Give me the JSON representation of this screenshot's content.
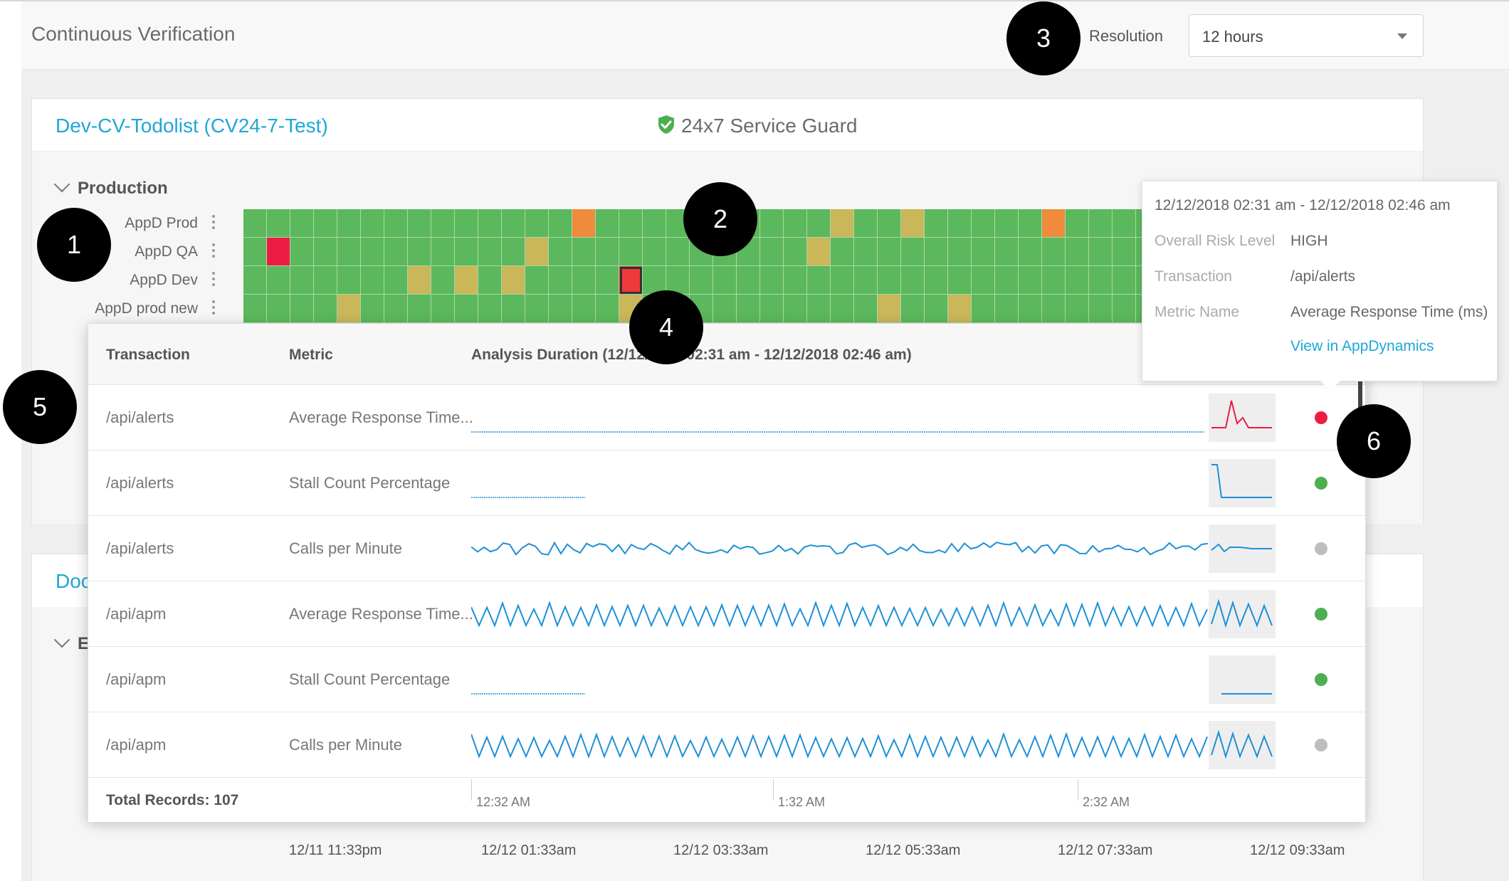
{
  "header": {
    "title": "Continuous Verification",
    "resolution_label": "Resolution",
    "resolution_value": "12 hours"
  },
  "service": {
    "title": "Dev-CV-Todolist (CV24-7-Test)",
    "guard_label": "24x7 Service Guard",
    "environment": "Production"
  },
  "heatmap": {
    "rows": [
      {
        "label": "AppD Prod",
        "cells": "GGGGGGGGGGGGGGOGGGGGGGGGGYGGYGGGGGOGGGGGGGGGGGGGGGG"
      },
      {
        "label": "AppD QA",
        "cells": "GRGGGGGGGGGGYGGGGGGGGGGGYGGGGGGGGGGGGGGGGGGGGGGGGGG"
      },
      {
        "label": "AppD Dev",
        "cells": "GGGGGGGYGYGYGGGGXGGGGGGGGGGGGGGGGGGGGGGGGGGGGGGGYGG"
      },
      {
        "label": "AppD prod new",
        "cells": "GGGGYGGGGGGGGGGGYGGGGGGGGGGYGGYGGGGGGGGGGGGGGGGGGGG"
      }
    ],
    "colors": {
      "G": "#5cb85c",
      "Y": "#c9b75a",
      "O": "#f08a3c",
      "R": "#ee1c45",
      "X": "#ee3a3a",
      "W": "#e8a84a"
    }
  },
  "second_card": {
    "title_partial": "Doc",
    "env_partial": "E"
  },
  "time_axis": [
    "12/11 11:33pm",
    "12/12 01:33am",
    "12/12 03:33am",
    "12/12 05:33am",
    "12/12 07:33am",
    "12/12 09:33am"
  ],
  "popup": {
    "col_transaction": "Transaction",
    "col_metric": "Metric",
    "col_duration": "Analysis Duration (12/12/2018 02:31 am - 12/12/2018 02:46 am)",
    "rows": [
      {
        "transaction": "/api/alerts",
        "metric": "Average Response Time...",
        "status": "red"
      },
      {
        "transaction": "/api/alerts",
        "metric": "Stall Count Percentage",
        "status": "green"
      },
      {
        "transaction": "/api/alerts",
        "metric": "Calls per Minute",
        "status": "gray"
      },
      {
        "transaction": "/api/apm",
        "metric": "Average Response Time...",
        "status": "green"
      },
      {
        "transaction": "/api/apm",
        "metric": "Stall Count Percentage",
        "status": "green"
      },
      {
        "transaction": "/api/apm",
        "metric": "Calls per Minute",
        "status": "gray"
      }
    ],
    "total_records": "Total Records: 107",
    "ticks": [
      "12:32 AM",
      "1:32 AM",
      "2:32 AM"
    ],
    "status_colors": {
      "red": "#ee1c45",
      "green": "#4caf50",
      "gray": "#bdbdbd"
    }
  },
  "tooltip": {
    "range": "12/12/2018 02:31 am - 12/12/2018 02:46 am",
    "risk_label": "Overall Risk Level",
    "risk_value": "HIGH",
    "transaction_label": "Transaction",
    "transaction_value": "/api/alerts",
    "metric_label": "Metric Name",
    "metric_value": "Average Response Time (ms)",
    "link": "View in AppDynamics"
  },
  "annotations": [
    "1",
    "2",
    "3",
    "4",
    "5",
    "6"
  ]
}
